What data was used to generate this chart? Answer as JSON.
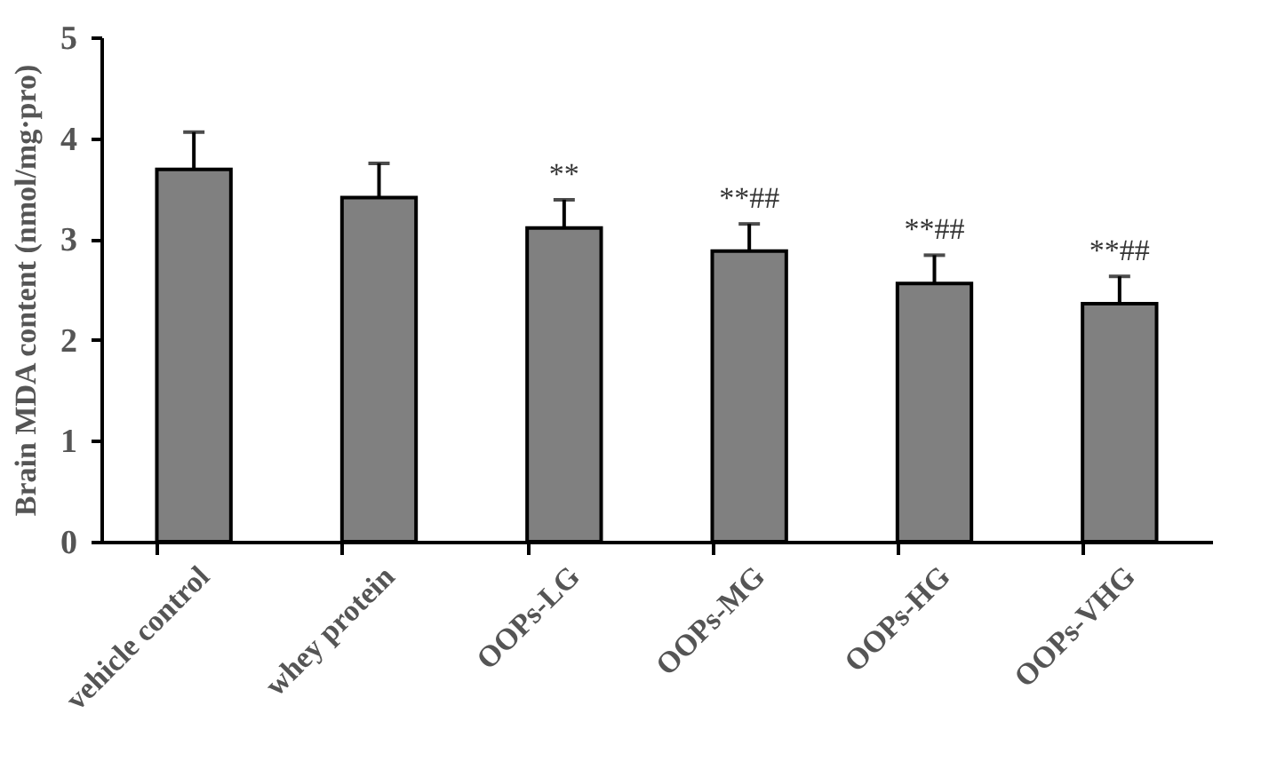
{
  "chart_data": {
    "type": "bar",
    "ylabel": "Brain MDA content (nmol/mg·pro)",
    "categories": [
      "vehicle control",
      "whey protein",
      "OOPs-LG",
      "OOPs-MG",
      "OOPs-HG",
      "OOPs-VHG"
    ],
    "values": [
      3.69,
      3.41,
      3.11,
      2.88,
      2.56,
      2.36
    ],
    "errors": [
      [
        3.69,
        4.06
      ],
      [
        3.41,
        3.75
      ],
      [
        3.11,
        3.39
      ],
      [
        2.88,
        3.15
      ],
      [
        2.56,
        2.84
      ],
      [
        2.36,
        2.63
      ]
    ],
    "color": "#808080",
    "ylim": [
      0,
      5
    ],
    "yticks": [
      0,
      1,
      2,
      3,
      4,
      5
    ],
    "grid": false,
    "annotations": [
      "**",
      "**##",
      "**##",
      "**##"
    ]
  }
}
